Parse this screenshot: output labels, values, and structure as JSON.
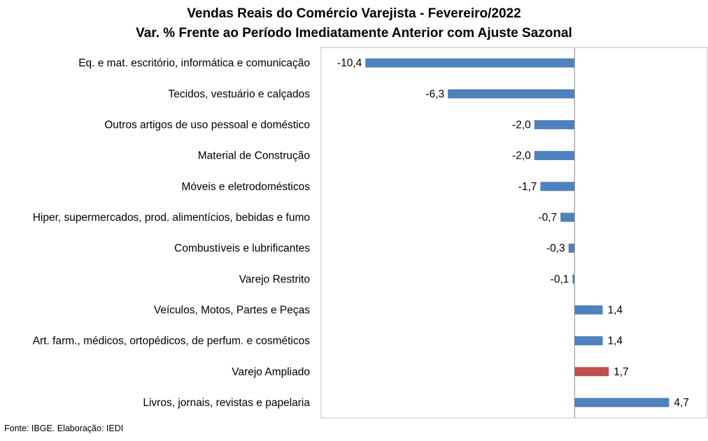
{
  "chart_data": {
    "type": "bar",
    "orientation": "horizontal",
    "title": "Vendas Reais do Comércio Varejista - Fevereiro/2022",
    "subtitle": "Var. % Frente ao Período Imediatamente Anterior com Ajuste Sazonal",
    "categories": [
      "Eq. e mat. escritório, informática e comunicação",
      "Tecidos, vestuário e calçados",
      "Outros artigos de uso pessoal e doméstico",
      "Material de Construção",
      "Móveis e eletrodomésticos",
      "Hiper, supermercados, prod. alimentícios, bebidas e fumo",
      "Combustíveis e lubrificantes",
      "Varejo Restrito",
      "Veículos, Motos, Partes e Peças",
      "Art. farm., médicos, ortopédicos, de perfum. e cosméticos",
      "Varejo Ampliado",
      "Livros, jornais, revistas e papelaria"
    ],
    "values": [
      -10.4,
      -6.3,
      -2.0,
      -2.0,
      -1.7,
      -0.7,
      -0.3,
      -0.1,
      1.4,
      1.4,
      1.7,
      4.7
    ],
    "value_labels": [
      "-10,4",
      "-6,3",
      "-2,0",
      "-2,0",
      "-1,7",
      "-0,7",
      "-0,3",
      "-0,1",
      "1,4",
      "1,4",
      "1,7",
      "4,7"
    ],
    "xlim": [
      -12.6,
      6.6
    ],
    "grid": false,
    "bar_color": "#4f81bd",
    "highlight_color": "#c0504d",
    "highlight_category": "Varejo Ampliado"
  },
  "source_note": "Fonte: IBGE. Elaboração: IEDI"
}
